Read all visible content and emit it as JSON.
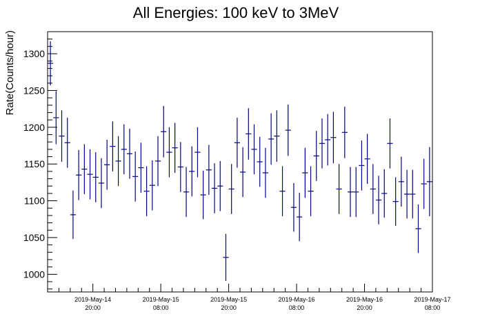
{
  "chart_data": {
    "type": "scatter",
    "title": "All Energies:  100 keV to 3MeV",
    "xlabel": "",
    "ylabel": "Rate(Counts/hour)",
    "xlim": [
      "2019-05-14T12:00",
      "2019-05-17T08:00"
    ],
    "ylim": [
      976,
      1330
    ],
    "y_ticks": [
      1000,
      1050,
      1100,
      1150,
      1200,
      1250,
      1300
    ],
    "x_ticks": [
      {
        "line1": "2019-May-14",
        "line2": "20:00"
      },
      {
        "line1": "2019-May-15",
        "line2": "08:00"
      },
      {
        "line1": "2019-May-15",
        "line2": "20:00"
      },
      {
        "line1": "2019-May-16",
        "line2": "08:00"
      },
      {
        "line1": "2019-May-16",
        "line2": "20:00"
      },
      {
        "line1": "2019-May-17",
        "line2": "08:00"
      }
    ],
    "marker_color": "#000080",
    "x_step_hours": 1,
    "series": [
      {
        "values": [
          {
            "y": 1287,
            "err": 30
          },
          {
            "y": 1213,
            "err": 36
          },
          {
            "y": 1188,
            "err": 35
          },
          {
            "y": 1179,
            "err": 34
          },
          {
            "y": 1081,
            "err": 33
          },
          {
            "y": 1135,
            "err": 34
          },
          {
            "y": 1143,
            "err": 34
          },
          {
            "y": 1136,
            "err": 34
          },
          {
            "y": 1132,
            "err": 34
          },
          {
            "y": 1124,
            "err": 34
          },
          {
            "y": 1149,
            "err": 34
          },
          {
            "y": 1174,
            "err": 34
          },
          {
            "y": 1154,
            "err": 34
          },
          {
            "y": 1170,
            "err": 34
          },
          {
            "y": 1164,
            "err": 34
          },
          {
            "y": 1133,
            "err": 34
          },
          {
            "y": 1145,
            "err": 34
          },
          {
            "y": 1113,
            "err": 34
          },
          {
            "y": 1121,
            "err": 34
          },
          {
            "y": 1154,
            "err": 34
          },
          {
            "y": 1194,
            "err": 35
          },
          {
            "y": 1166,
            "err": 34
          },
          {
            "y": 1172,
            "err": 34
          },
          {
            "y": 1146,
            "err": 34
          },
          {
            "y": 1112,
            "err": 34
          },
          {
            "y": 1140,
            "err": 34
          },
          {
            "y": 1166,
            "err": 34
          },
          {
            "y": 1108,
            "err": 33
          },
          {
            "y": 1142,
            "err": 34
          },
          {
            "y": 1117,
            "err": 34
          },
          {
            "y": 1120,
            "err": 34
          },
          {
            "y": 1023,
            "err": 32
          },
          {
            "y": 1116,
            "err": 34
          },
          {
            "y": 1179,
            "err": 34
          },
          {
            "y": 1139,
            "err": 34
          },
          {
            "y": 1191,
            "err": 35
          },
          {
            "y": 1170,
            "err": 34
          },
          {
            "y": 1153,
            "err": 34
          },
          {
            "y": 1138,
            "err": 34
          },
          {
            "y": 1184,
            "err": 35
          },
          {
            "y": 1188,
            "err": 35
          },
          {
            "y": 1113,
            "err": 34
          },
          {
            "y": 1196,
            "err": 35
          },
          {
            "y": 1091,
            "err": 33
          },
          {
            "y": 1078,
            "err": 33
          },
          {
            "y": 1138,
            "err": 34
          },
          {
            "y": 1113,
            "err": 34
          },
          {
            "y": 1161,
            "err": 34
          },
          {
            "y": 1178,
            "err": 34
          },
          {
            "y": 1183,
            "err": 35
          },
          {
            "y": 1186,
            "err": 35
          },
          {
            "y": 1116,
            "err": 34
          },
          {
            "y": 1193,
            "err": 35
          },
          {
            "y": 1112,
            "err": 34
          },
          {
            "y": 1112,
            "err": 34
          },
          {
            "y": 1148,
            "err": 34
          },
          {
            "y": 1157,
            "err": 34
          },
          {
            "y": 1116,
            "err": 34
          },
          {
            "y": 1101,
            "err": 33
          },
          {
            "y": 1110,
            "err": 33
          },
          {
            "y": 1178,
            "err": 34
          },
          {
            "y": 1099,
            "err": 33
          },
          {
            "y": 1126,
            "err": 34
          },
          {
            "y": 1109,
            "err": 33
          },
          {
            "y": 1109,
            "err": 33
          },
          {
            "y": 1062,
            "err": 33
          },
          {
            "y": 1123,
            "err": 34
          },
          {
            "y": 1126,
            "err": 47
          }
        ]
      }
    ]
  }
}
